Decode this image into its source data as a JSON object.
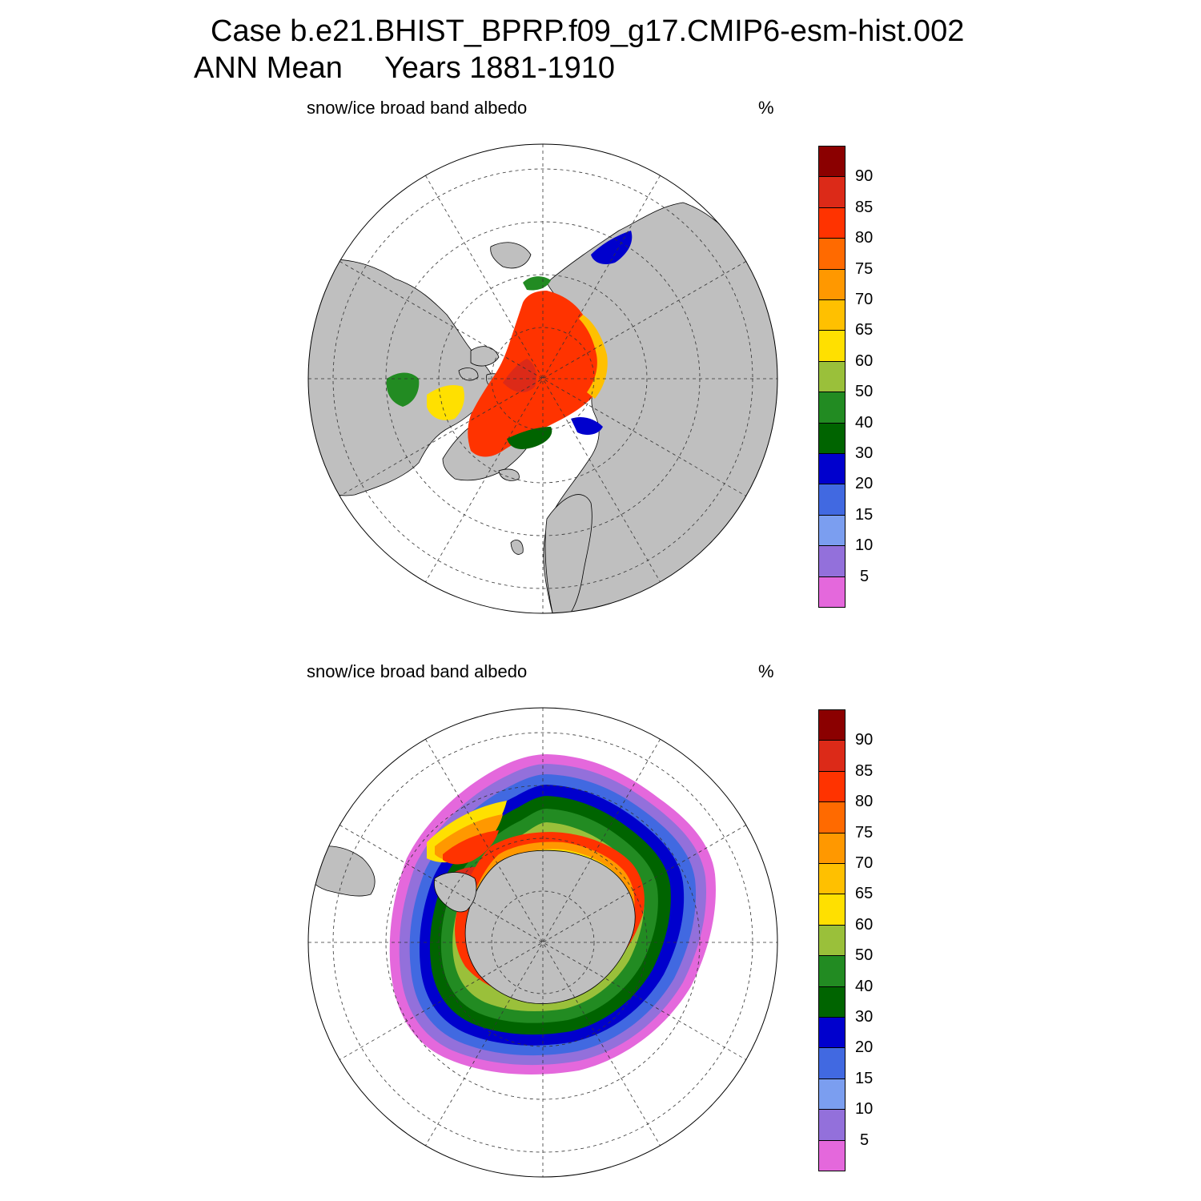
{
  "figure": {
    "title_line1": "Case b.e21.BHIST_BPRP.f09_g17.CMIP6-esm-hist.002",
    "title_line2": "ANN Mean     Years 1881-1910"
  },
  "panels": [
    {
      "hemisphere": "north",
      "variable": "snow/ice broad band albedo",
      "units": "%"
    },
    {
      "hemisphere": "south",
      "variable": "snow/ice broad band albedo",
      "units": "%"
    }
  ],
  "colorbar": {
    "levels": [
      "5",
      "10",
      "15",
      "20",
      "30",
      "40",
      "50",
      "60",
      "65",
      "70",
      "75",
      "80",
      "85",
      "90"
    ],
    "colors": [
      "#e468dc",
      "#9370db",
      "#7b9ef0",
      "#4169e1",
      "#0000cd",
      "#006400",
      "#228b22",
      "#9ac03a",
      "#ffe000",
      "#ffc000",
      "#ff9800",
      "#ff6a00",
      "#ff3300",
      "#dc2a18",
      "#8b0000"
    ]
  },
  "map_style": {
    "land": "#bfbfbf",
    "ocean": "#ffffff",
    "grid": "dashed"
  }
}
